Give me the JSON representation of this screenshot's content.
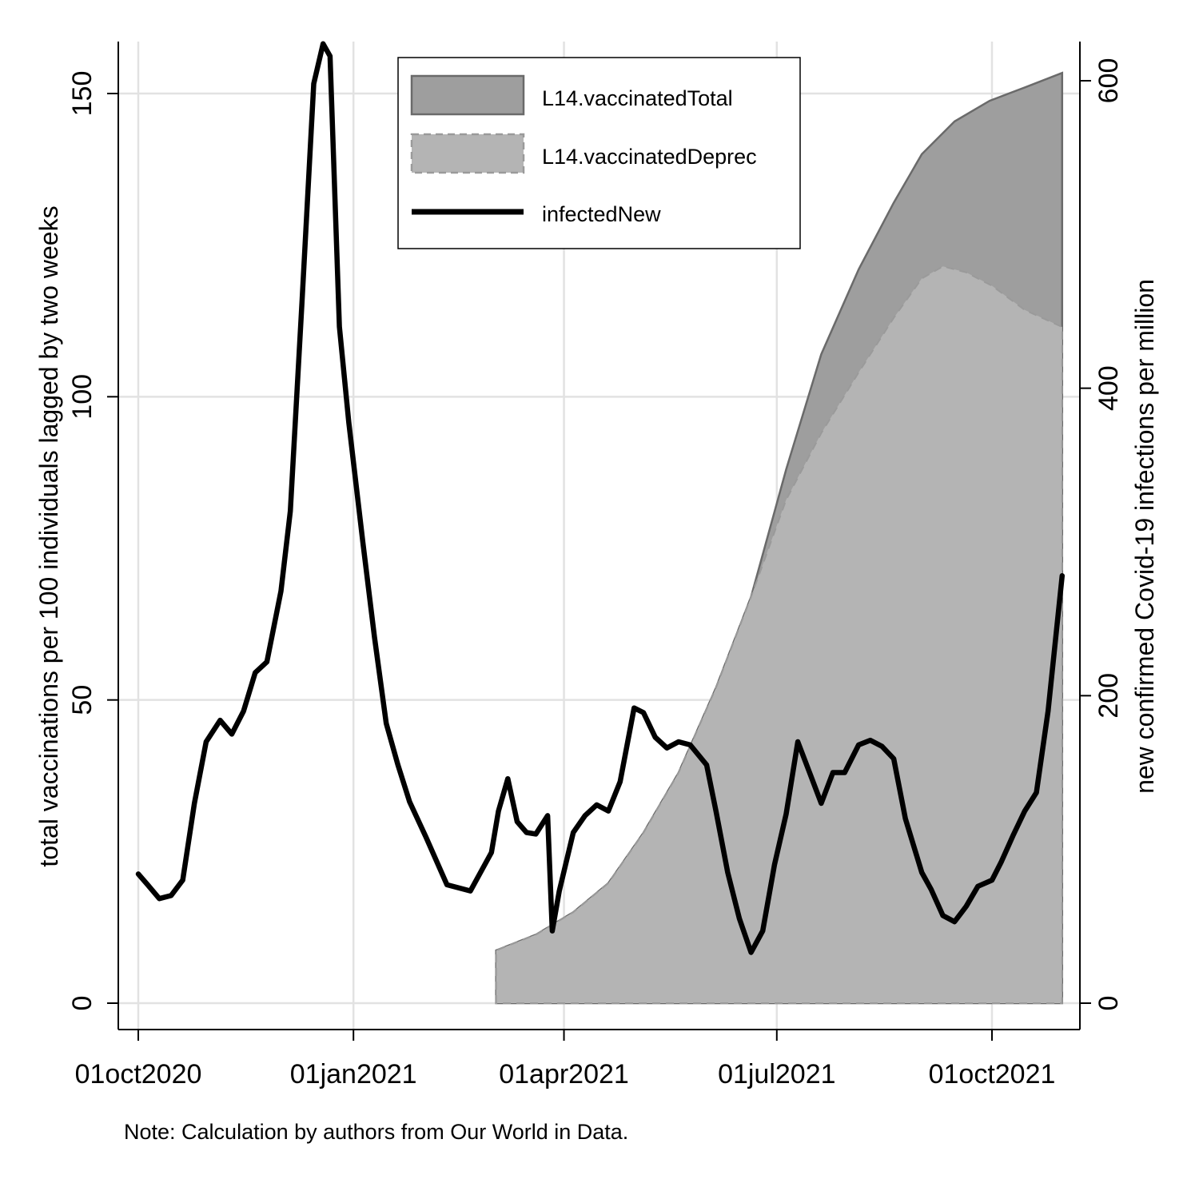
{
  "chart_data": {
    "type": "area",
    "x_axis": {
      "type": "date",
      "ticks": [
        "2020-10-01",
        "2021-01-01",
        "2021-04-01",
        "2021-07-01",
        "2021-10-01"
      ],
      "tick_labels": [
        "01oct2020",
        "01jan2021",
        "01apr2021",
        "01jul2021",
        "01oct2021"
      ]
    },
    "y_left": {
      "label": "total vaccinations per 100 individuals lagged by two weeks",
      "ticks": [
        0,
        50,
        100,
        150
      ],
      "range": [
        -4.5,
        158
      ]
    },
    "y_right": {
      "label": "new confirmed Covid-19 infections per million",
      "ticks": [
        0,
        200,
        400,
        600
      ],
      "range": [
        -18,
        632
      ]
    },
    "grid": true,
    "legend": {
      "placement": "top-center",
      "entries": [
        "L14.vaccinatedTotal",
        "L14.vaccinatedDeprec",
        "infectedNew"
      ]
    },
    "note": "Note: Calculation by authors from Our World in Data.",
    "series": [
      {
        "name": "L14.vaccinatedTotal",
        "axis": "left",
        "style": "area",
        "color": "#9e9e9e",
        "x": [
          "2021-03-03",
          "2021-03-20",
          "2021-04-05",
          "2021-04-20",
          "2021-05-05",
          "2021-05-20",
          "2021-06-05",
          "2021-06-20",
          "2021-07-05",
          "2021-07-20",
          "2021-08-05",
          "2021-08-20",
          "2021-09-01",
          "2021-09-15",
          "2021-09-30",
          "2021-10-15",
          "2021-10-31"
        ],
        "values": [
          8.7,
          11.3,
          15,
          19.8,
          28.1,
          38,
          52,
          67,
          88,
          107,
          121,
          132,
          140,
          145.4,
          148.8,
          151,
          153.4
        ]
      },
      {
        "name": "L14.vaccinatedDeprec",
        "axis": "left",
        "style": "area",
        "color": "#b4b4b4",
        "x": [
          "2021-03-03",
          "2021-03-20",
          "2021-04-05",
          "2021-04-20",
          "2021-05-05",
          "2021-05-20",
          "2021-06-05",
          "2021-06-20",
          "2021-07-05",
          "2021-07-20",
          "2021-08-05",
          "2021-08-20",
          "2021-09-01",
          "2021-09-10",
          "2021-09-20",
          "2021-10-01",
          "2021-10-15",
          "2021-10-31"
        ],
        "values": [
          8.7,
          11.3,
          15,
          19.8,
          28.1,
          38,
          52,
          67,
          83,
          94,
          104,
          113,
          119.5,
          121.5,
          120.5,
          118.3,
          114.3,
          111.5
        ]
      },
      {
        "name": "infectedNew",
        "axis": "right",
        "style": "line",
        "color": "#000000",
        "x": [
          "2020-10-01",
          "2020-10-05",
          "2020-10-10",
          "2020-10-15",
          "2020-10-20",
          "2020-10-25",
          "2020-10-30",
          "2020-11-05",
          "2020-11-10",
          "2020-11-15",
          "2020-11-20",
          "2020-11-25",
          "2020-12-01",
          "2020-12-05",
          "2020-12-10",
          "2020-12-15",
          "2020-12-19",
          "2020-12-22",
          "2020-12-26",
          "2020-12-30",
          "2021-01-05",
          "2021-01-10",
          "2021-01-15",
          "2021-01-20",
          "2021-01-25",
          "2021-02-01",
          "2021-02-10",
          "2021-02-20",
          "2021-03-01",
          "2021-03-04",
          "2021-03-08",
          "2021-03-12",
          "2021-03-16",
          "2021-03-20",
          "2021-03-25",
          "2021-03-27",
          "2021-03-30",
          "2021-04-05",
          "2021-04-10",
          "2021-04-15",
          "2021-04-20",
          "2021-04-25",
          "2021-05-01",
          "2021-05-05",
          "2021-05-10",
          "2021-05-15",
          "2021-05-20",
          "2021-05-25",
          "2021-06-01",
          "2021-06-05",
          "2021-06-10",
          "2021-06-15",
          "2021-06-20",
          "2021-06-25",
          "2021-06-30",
          "2021-07-05",
          "2021-07-10",
          "2021-07-15",
          "2021-07-20",
          "2021-07-25",
          "2021-07-30",
          "2021-08-05",
          "2021-08-10",
          "2021-08-15",
          "2021-08-20",
          "2021-08-25",
          "2021-09-01",
          "2021-09-05",
          "2021-09-10",
          "2021-09-15",
          "2021-09-20",
          "2021-09-25",
          "2021-10-01",
          "2021-10-05",
          "2021-10-10",
          "2021-10-15",
          "2021-10-20",
          "2021-10-25",
          "2021-10-31"
        ],
        "values": [
          84,
          77,
          68,
          70,
          80,
          130,
          170,
          184,
          175,
          190,
          215,
          222,
          268,
          320,
          456,
          598,
          624,
          616,
          440,
          378,
          300,
          238,
          182,
          155,
          131,
          108,
          77,
          73,
          98,
          125,
          146,
          118,
          111,
          110,
          122,
          47,
          73,
          111,
          122,
          129,
          125,
          144,
          192,
          189,
          173,
          166,
          170,
          168,
          155,
          125,
          85,
          55,
          33,
          47,
          90,
          123,
          170,
          150,
          130,
          150,
          150,
          168,
          171,
          167,
          159,
          120,
          85,
          74,
          57,
          53,
          63,
          76,
          80,
          92,
          109,
          125,
          137,
          190,
          278
        ]
      }
    ]
  }
}
